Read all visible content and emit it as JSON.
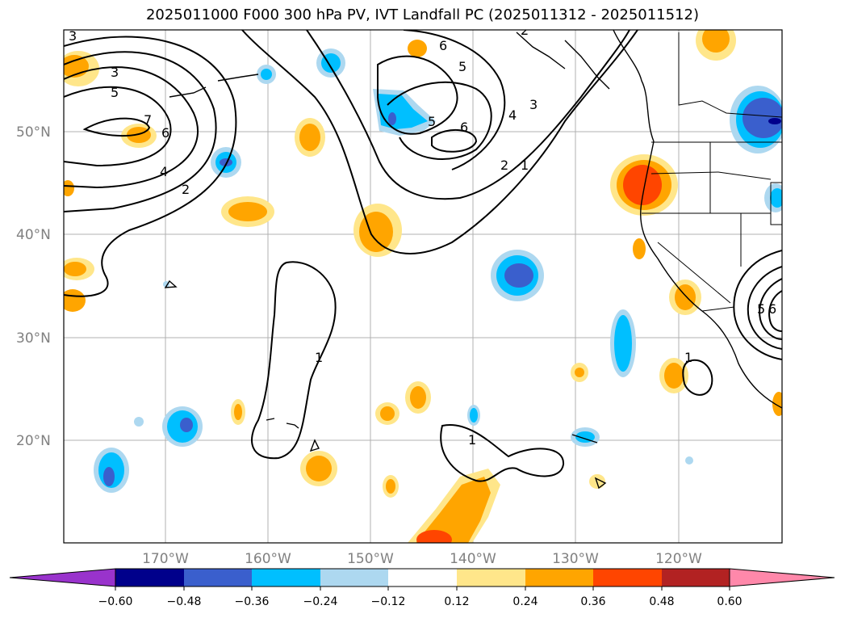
{
  "title": "2025011000 F000 300 hPa PV, IVT Landfall PC (2025011312 - 2025011512)",
  "lat_labels": [
    "50°N",
    "40°N",
    "30°N",
    "20°N"
  ],
  "lon_labels": [
    "170°W",
    "160°W",
    "150°W",
    "140°W",
    "130°W",
    "120°W"
  ],
  "colorbar": {
    "ticks": [
      "−0.60",
      "−0.48",
      "−0.36",
      "−0.24",
      "−0.12",
      "0.12",
      "0.24",
      "0.36",
      "0.48",
      "0.60"
    ],
    "colors": [
      "#9933cc",
      "#00008b",
      "#3a5fcd",
      "#00bfff",
      "#add8f0",
      "#ffffff",
      "#ffe68a",
      "#ffa500",
      "#ff4500",
      "#b22222",
      "#ff88aa"
    ]
  },
  "pv_contour_labels": [
    "3",
    "3",
    "5",
    "7",
    "6",
    "4",
    "2",
    "2",
    "6",
    "5",
    "6",
    "5",
    "4",
    "3",
    "2",
    "1",
    "1",
    "1",
    "1",
    "5",
    "6"
  ]
}
